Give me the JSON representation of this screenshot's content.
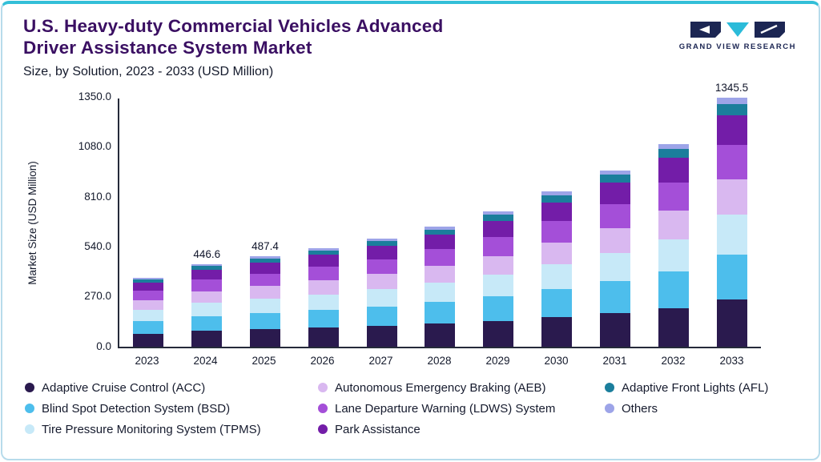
{
  "header": {
    "title_line1": "U.S. Heavy-duty Commercial Vehicles Advanced",
    "title_line2": "Driver Assistance System Market",
    "subtitle": "Size, by Solution, 2023 - 2033 (USD Million)",
    "logo_text": "GRAND VIEW RESEARCH"
  },
  "colors": {
    "accent_top": "#33BFD8",
    "card_border": "#B7DBEB",
    "title": "#3A0F62",
    "axis": "#252A3A",
    "logo_navy": "#1C2653",
    "logo_cyan": "#2BBBD9"
  },
  "chart_data": {
    "type": "bar",
    "stacked": true,
    "ylabel": "Market Size (USD Million)",
    "ylim": [
      0,
      1350
    ],
    "yticks": [
      0,
      270,
      540,
      810,
      1080,
      1350
    ],
    "ytick_labels": [
      "0.0",
      "270.0",
      "540.0",
      "810.0",
      "1080.0",
      "1350.0"
    ],
    "categories": [
      "2023",
      "2024",
      "2025",
      "2026",
      "2027",
      "2028",
      "2029",
      "2030",
      "2031",
      "2032",
      "2033"
    ],
    "bar_value_labels": [
      "",
      "446.6",
      "487.4",
      "",
      "",
      "",
      "",
      "",
      "",
      "",
      "1345.5"
    ],
    "totals": [
      372.0,
      446.6,
      487.4,
      533.0,
      585.0,
      649.0,
      731.0,
      838.0,
      953.0,
      1096.0,
      1345.5
    ],
    "grid": false,
    "legend_position": "bottom",
    "series": [
      {
        "key": "acc",
        "name": "Adaptive Cruise Control (ACC)",
        "color": "#2A1A4E",
        "values": [
          70.7,
          84.9,
          92.6,
          101.3,
          111.2,
          123.3,
          138.9,
          159.2,
          181.1,
          208.2,
          255.6
        ]
      },
      {
        "key": "bsd",
        "name": "Blind Spot Detection System (BSD)",
        "color": "#4DBEEC",
        "values": [
          67.0,
          80.4,
          87.7,
          95.9,
          105.3,
          116.8,
          131.6,
          150.8,
          171.5,
          197.3,
          242.2
        ]
      },
      {
        "key": "tpms",
        "name": "Tire Pressure Monitoring System (TPMS)",
        "color": "#C7E9F8",
        "values": [
          59.5,
          71.5,
          78.0,
          85.3,
          93.6,
          103.8,
          117.0,
          134.1,
          152.5,
          175.4,
          215.3
        ]
      },
      {
        "key": "aeb",
        "name": "Autonomous Emergency Braking (AEB)",
        "color": "#D9B8F0",
        "values": [
          52.1,
          62.5,
          68.2,
          74.6,
          81.9,
          90.9,
          102.3,
          117.3,
          133.4,
          153.4,
          188.4
        ]
      },
      {
        "key": "ldws",
        "name": "Lane Departure Warning (LDWS) System",
        "color": "#A44FD8",
        "values": [
          52.1,
          62.5,
          68.2,
          74.6,
          81.9,
          90.9,
          102.3,
          117.3,
          133.4,
          153.4,
          188.4
        ]
      },
      {
        "key": "park",
        "name": "Park Assistance",
        "color": "#731DA8",
        "values": [
          44.6,
          53.6,
          58.5,
          64.0,
          70.2,
          77.9,
          87.7,
          100.6,
          114.4,
          131.5,
          161.5
        ]
      },
      {
        "key": "afl",
        "name": "Adaptive Front Lights (AFL)",
        "color": "#1B7E9C",
        "values": [
          16.7,
          20.1,
          21.9,
          24.0,
          26.3,
          29.2,
          32.9,
          37.7,
          42.9,
          49.3,
          60.5
        ]
      },
      {
        "key": "others",
        "name": "Others",
        "color": "#9DA4E8",
        "values": [
          9.3,
          11.1,
          12.3,
          13.3,
          14.6,
          16.2,
          18.3,
          21.0,
          23.8,
          27.5,
          33.6
        ]
      }
    ]
  },
  "legend": {
    "items": [
      {
        "label": "Adaptive Cruise Control (ACC)",
        "color": "#2A1A4E"
      },
      {
        "label": "Autonomous Emergency Braking (AEB)",
        "color": "#D9B8F0"
      },
      {
        "label": "Adaptive Front Lights (AFL)",
        "color": "#1B7E9C"
      },
      {
        "label": "Blind Spot Detection System (BSD)",
        "color": "#4DBEEC"
      },
      {
        "label": "Lane Departure Warning (LDWS) System",
        "color": "#A44FD8"
      },
      {
        "label": "Others",
        "color": "#9DA4E8"
      },
      {
        "label": "Tire Pressure Monitoring System (TPMS)",
        "color": "#C7E9F8"
      },
      {
        "label": "Park Assistance",
        "color": "#731DA8"
      }
    ]
  }
}
